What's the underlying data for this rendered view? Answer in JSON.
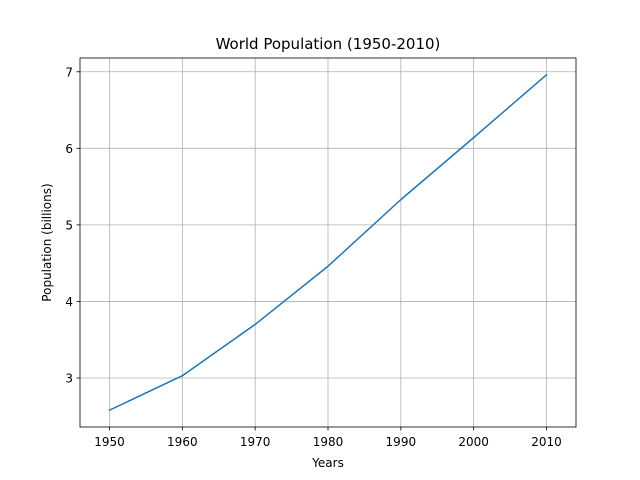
{
  "chart_data": {
    "type": "line",
    "title": "World Population (1950-2010)",
    "xlabel": "Years",
    "ylabel": "Population (billions)",
    "x": [
      1950,
      1960,
      1970,
      1980,
      1990,
      2000,
      2010
    ],
    "series": [
      {
        "values": [
          2.58,
          3.03,
          3.7,
          4.46,
          5.33,
          6.14,
          6.96
        ]
      }
    ],
    "xlim": [
      1945.95,
      2014.05
    ],
    "ylim": [
      2.36,
      7.18
    ],
    "xticks": [
      1950,
      1960,
      1970,
      1980,
      1990,
      2000,
      2010
    ],
    "yticks": [
      3,
      4,
      5,
      6,
      7
    ],
    "grid": true,
    "colors": {
      "line": "#1f77b4",
      "grid": "#b0b0b0",
      "axis": "#000000"
    }
  }
}
